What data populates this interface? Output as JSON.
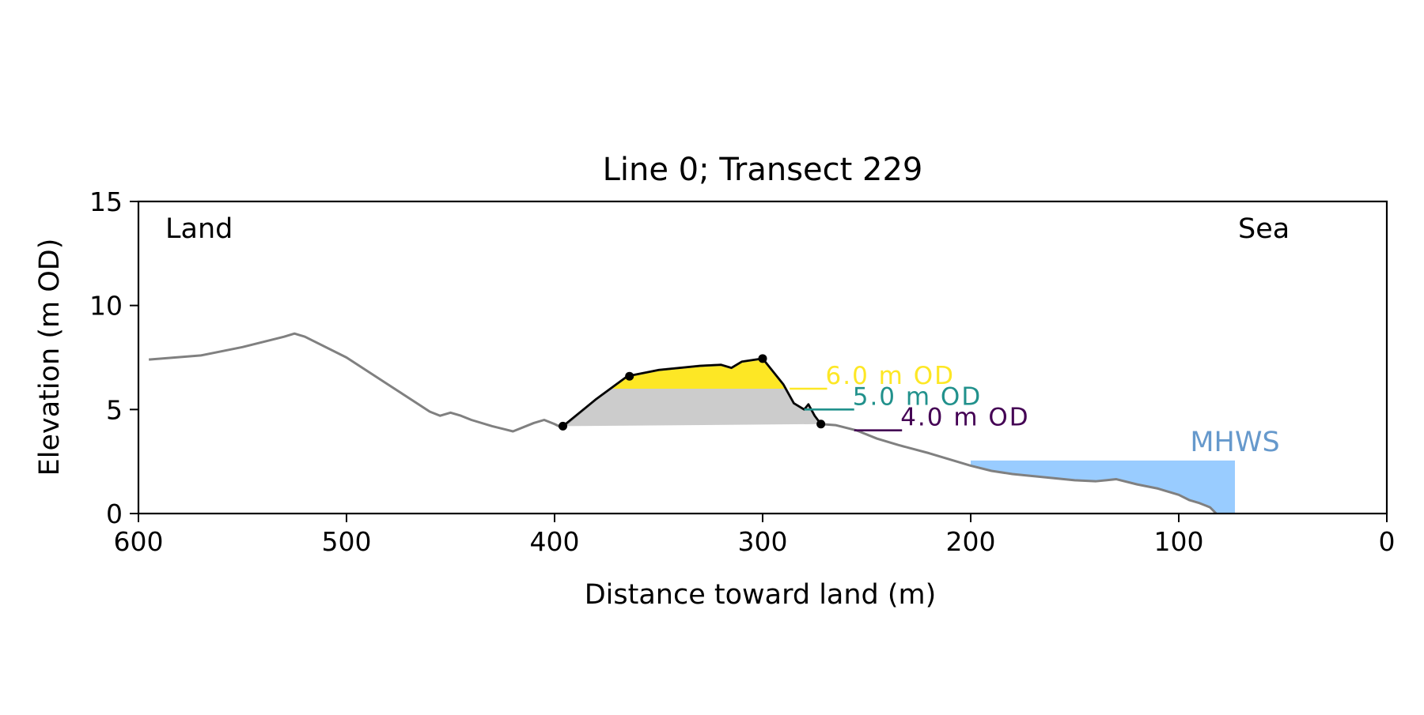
{
  "chart_data": {
    "type": "line",
    "title": "Line 0; Transect 229",
    "xlabel": "Distance toward land (m)",
    "ylabel": "Elevation (m OD)",
    "xlim": [
      600,
      0
    ],
    "ylim": [
      0,
      15
    ],
    "x_ticks": [
      600,
      500,
      400,
      300,
      200,
      100,
      0
    ],
    "y_ticks": [
      0,
      5,
      10,
      15
    ],
    "grid": false,
    "corner_labels": {
      "left": "Land",
      "right": "Sea"
    },
    "profile": {
      "color": "#808080",
      "x": [
        595,
        570,
        550,
        530,
        525,
        520,
        500,
        480,
        460,
        455,
        450,
        445,
        440,
        430,
        420,
        410,
        405,
        400,
        398,
        395,
        380,
        365,
        350,
        330,
        320,
        315,
        310,
        300,
        290,
        285,
        280,
        278,
        275,
        272,
        265,
        255,
        245,
        235,
        220,
        210,
        200,
        190,
        180,
        170,
        160,
        150,
        140,
        130,
        120,
        110,
        100,
        95,
        90,
        85,
        82
      ],
      "y": [
        7.4,
        7.6,
        8.0,
        8.5,
        8.65,
        8.5,
        7.5,
        6.2,
        4.9,
        4.7,
        4.85,
        4.7,
        4.5,
        4.2,
        3.95,
        4.35,
        4.5,
        4.3,
        4.2,
        4.25,
        5.5,
        6.6,
        6.9,
        7.1,
        7.15,
        7.0,
        7.3,
        7.45,
        6.2,
        5.3,
        5.0,
        5.25,
        4.7,
        4.3,
        4.25,
        4.0,
        3.6,
        3.3,
        2.9,
        2.6,
        2.3,
        2.05,
        1.9,
        1.8,
        1.7,
        1.6,
        1.55,
        1.65,
        1.4,
        1.2,
        0.9,
        0.65,
        0.5,
        0.3,
        0.0
      ]
    },
    "dune_outline": {
      "color": "#000000",
      "x": [
        396,
        380,
        365,
        350,
        330,
        320,
        315,
        310,
        300,
        290,
        285,
        280,
        278,
        275,
        272
      ],
      "y": [
        4.2,
        5.5,
        6.6,
        6.9,
        7.1,
        7.15,
        7.0,
        7.3,
        7.45,
        6.2,
        5.3,
        5.0,
        5.25,
        4.7,
        4.3
      ]
    },
    "points": {
      "color": "#000000",
      "x": [
        396,
        364,
        300,
        272
      ],
      "y": [
        4.2,
        6.6,
        7.45,
        4.3
      ]
    },
    "levels": [
      {
        "label": "6.0 m OD",
        "level": 6.0,
        "color": "#fde725",
        "x": [
          287,
          269
        ]
      },
      {
        "label": "5.0 m OD",
        "level": 5.0,
        "color": "#21918c",
        "x": [
          280,
          256
        ]
      },
      {
        "label": "4.0 m OD",
        "level": 4.0,
        "color": "#440154",
        "x": [
          256,
          233
        ]
      }
    ],
    "fills": [
      {
        "name": "above-6",
        "color": "#fde725",
        "level": 6.0
      },
      {
        "name": "dune-base",
        "color": "#cccccc",
        "level_left": 4.2,
        "level_right": 4.3
      }
    ],
    "mhws": {
      "label": "MHWS",
      "level": 2.55,
      "color": "#99ccff",
      "label_color": "#6699cc",
      "x_from": 200,
      "x_to": 73
    }
  }
}
